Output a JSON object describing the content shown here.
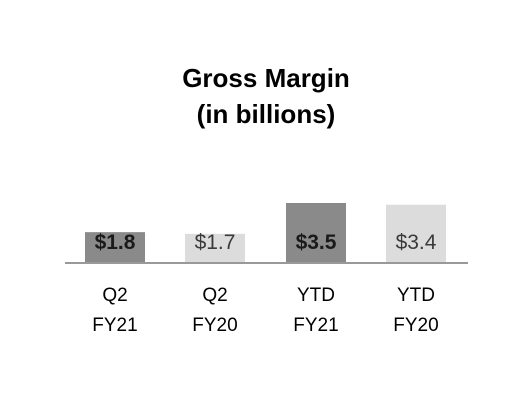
{
  "chart_data": {
    "type": "bar",
    "title": [
      "Gross Margin",
      "(in billions)"
    ],
    "categories": [
      [
        "Q2",
        "FY21"
      ],
      [
        "Q2",
        "FY20"
      ],
      [
        "YTD",
        "FY21"
      ],
      [
        "YTD",
        "FY20"
      ]
    ],
    "values": [
      1.8,
      1.7,
      3.5,
      3.4
    ],
    "data_labels": [
      "$1.8",
      "$1.7",
      "$3.5",
      "$3.4"
    ],
    "bar_colors": [
      "#8a8a8a",
      "#dcdcdc",
      "#8a8a8a",
      "#dcdcdc"
    ],
    "label_bold": [
      true,
      false,
      true,
      false
    ],
    "label_color": [
      "#1a1a1a",
      "#3a3a3a",
      "#1a1a1a",
      "#3a3a3a"
    ],
    "axis_color": "#999999",
    "xlabel": "",
    "ylabel": ""
  }
}
